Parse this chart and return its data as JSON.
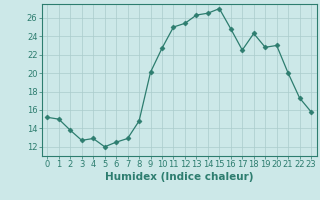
{
  "x": [
    0,
    1,
    2,
    3,
    4,
    5,
    6,
    7,
    8,
    9,
    10,
    11,
    12,
    13,
    14,
    15,
    16,
    17,
    18,
    19,
    20,
    21,
    22,
    23
  ],
  "y": [
    15.2,
    15.0,
    13.8,
    12.7,
    12.9,
    12.0,
    12.5,
    12.9,
    14.8,
    20.1,
    22.7,
    25.0,
    25.4,
    26.3,
    26.5,
    27.0,
    24.8,
    22.5,
    24.3,
    22.8,
    23.0,
    20.0,
    17.3,
    15.8
  ],
  "xlabel": "Humidex (Indice chaleur)",
  "xticks": [
    0,
    1,
    2,
    3,
    4,
    5,
    6,
    7,
    8,
    9,
    10,
    11,
    12,
    13,
    14,
    15,
    16,
    17,
    18,
    19,
    20,
    21,
    22,
    23
  ],
  "yticks": [
    12,
    14,
    16,
    18,
    20,
    22,
    24,
    26
  ],
  "ylim": [
    11.0,
    27.5
  ],
  "xlim": [
    -0.5,
    23.5
  ],
  "line_color": "#2d7d6f",
  "marker": "D",
  "marker_size": 2.5,
  "bg_color": "#cce8e8",
  "grid_color": "#aacccc",
  "xlabel_fontsize": 7.5,
  "tick_fontsize": 6.0
}
